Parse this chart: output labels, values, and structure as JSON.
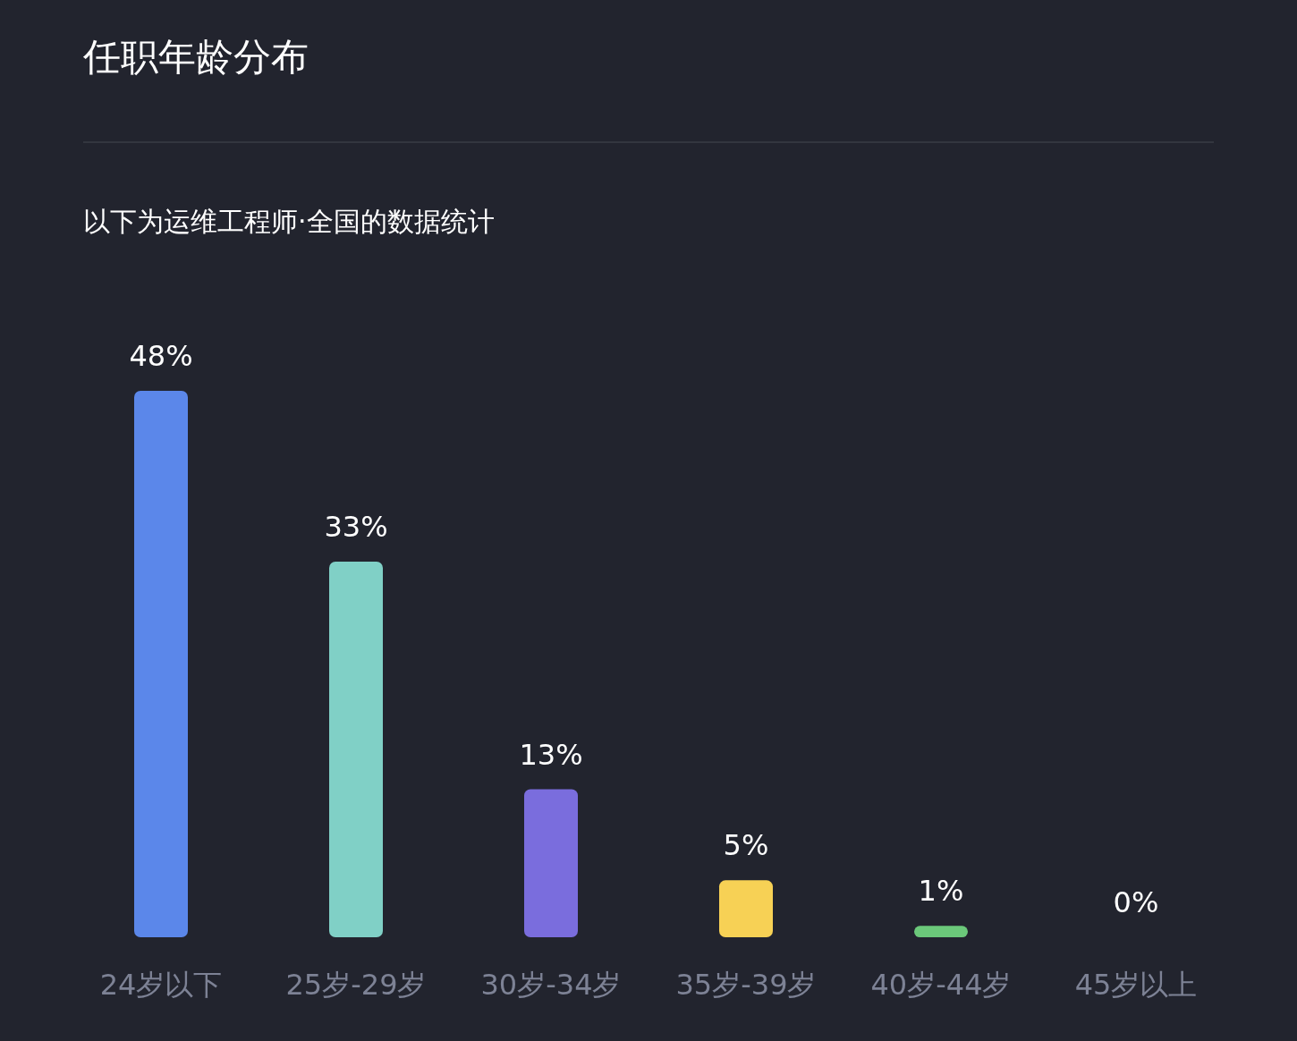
{
  "chart_data": {
    "type": "bar",
    "title": "任职年龄分布",
    "subtitle": "以下为运维工程师·全国的数据统计",
    "categories": [
      "24岁以下",
      "25岁-29岁",
      "30岁-34岁",
      "35岁-39岁",
      "40岁-44岁",
      "45岁以上"
    ],
    "values": [
      48,
      33,
      13,
      5,
      1,
      0
    ],
    "colors": [
      "#5b87ea",
      "#80d0c6",
      "#7a6ddd",
      "#f7d155",
      "#6bc87a",
      "#e86c6c"
    ],
    "value_labels": [
      "48%",
      "33%",
      "13%",
      "5%",
      "1%",
      "0%"
    ]
  }
}
